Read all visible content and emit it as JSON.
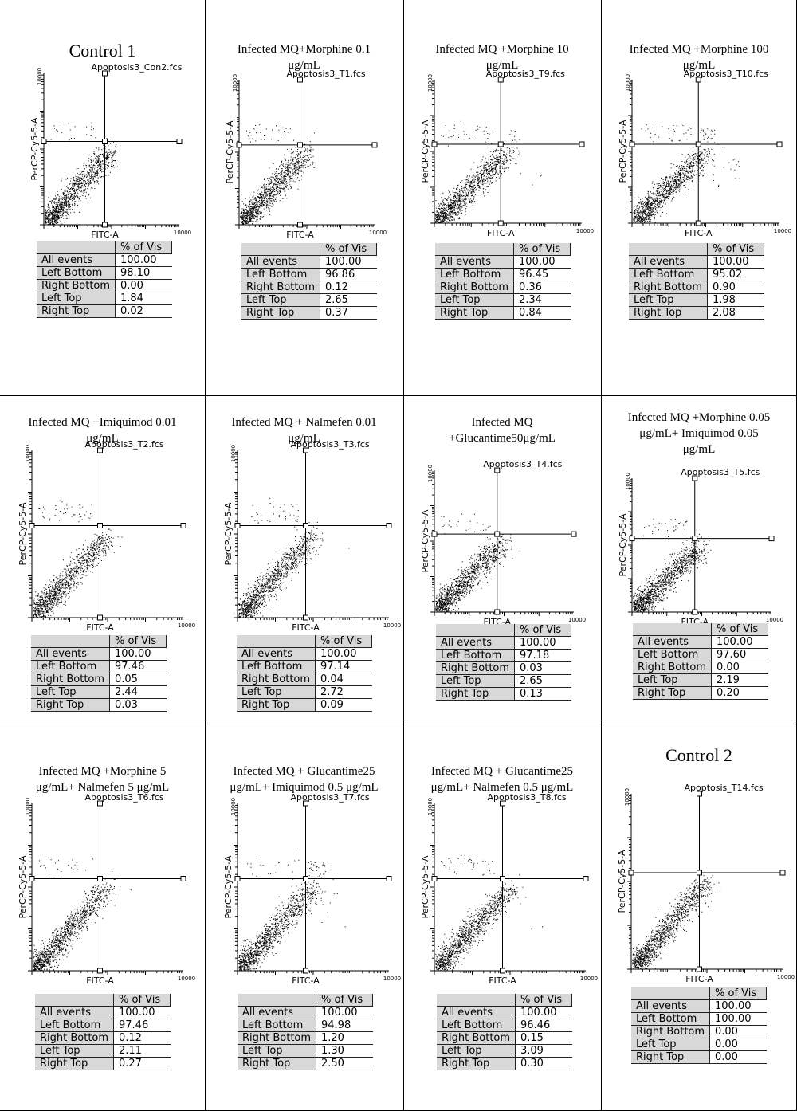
{
  "chart_data": [
    {
      "type": "scatter",
      "title_lines": [
        "Control 1"
      ],
      "file": "Apoptosis3_Con2.fcs",
      "xlabel": "FITC-A",
      "ylabel": "PerCP-Cy5-5-A",
      "stats_header": "% of Vis",
      "stats": [
        {
          "label": "All events",
          "value": "100.00"
        },
        {
          "label": "Left Bottom",
          "value": "98.10"
        },
        {
          "label": "Right Bottom",
          "value": "0.00"
        },
        {
          "label": "Left Top",
          "value": "1.84"
        },
        {
          "label": "Right Top",
          "value": "0.02"
        }
      ]
    },
    {
      "type": "scatter",
      "title_lines": [
        "Infected MQ+Morphine 0.1",
        "μg/mL"
      ],
      "file": "Apoptosis3_T1.fcs",
      "xlabel": "FITC-A",
      "ylabel": "PerCP-Cy5-5-A",
      "stats_header": "% of Vis",
      "stats": [
        {
          "label": "All events",
          "value": "100.00"
        },
        {
          "label": "Left Bottom",
          "value": "96.86"
        },
        {
          "label": "Right Bottom",
          "value": "0.12"
        },
        {
          "label": "Left Top",
          "value": "2.65"
        },
        {
          "label": "Right Top",
          "value": "0.37"
        }
      ]
    },
    {
      "type": "scatter",
      "title_lines": [
        "Infected MQ +Morphine 10",
        "μg/mL"
      ],
      "file": "Apoptosis3_T9.fcs",
      "xlabel": "FITC-A",
      "ylabel": "PerCP-Cy5-5-A",
      "stats_header": "% of Vis",
      "stats": [
        {
          "label": "All events",
          "value": "100.00"
        },
        {
          "label": "Left Bottom",
          "value": "96.45"
        },
        {
          "label": "Right Bottom",
          "value": "0.36"
        },
        {
          "label": "Left Top",
          "value": "2.34"
        },
        {
          "label": "Right Top",
          "value": "0.84"
        }
      ]
    },
    {
      "type": "scatter",
      "title_lines": [
        "Infected MQ +Morphine 100",
        "μg/mL"
      ],
      "file": "Apoptosis3_T10.fcs",
      "xlabel": "FITC-A",
      "ylabel": "PerCP-Cy5-5-A",
      "stats_header": "% of Vis",
      "stats": [
        {
          "label": "All events",
          "value": "100.00"
        },
        {
          "label": "Left Bottom",
          "value": "95.02"
        },
        {
          "label": "Right Bottom",
          "value": "0.90"
        },
        {
          "label": "Left Top",
          "value": "1.98"
        },
        {
          "label": "Right Top",
          "value": "2.08"
        }
      ]
    },
    {
      "type": "scatter",
      "title_lines": [
        "Infected MQ +Imiquimod 0.01",
        "μg/mL"
      ],
      "file": "Apoptosis3_T2.fcs",
      "xlabel": "FITC-A",
      "ylabel": "PerCP-Cy5-5-A",
      "stats_header": "% of Vis",
      "stats": [
        {
          "label": "All events",
          "value": "100.00"
        },
        {
          "label": "Left Bottom",
          "value": "97.46"
        },
        {
          "label": "Right Bottom",
          "value": "0.05"
        },
        {
          "label": "Left Top",
          "value": "2.44"
        },
        {
          "label": "Right Top",
          "value": "0.03"
        }
      ]
    },
    {
      "type": "scatter",
      "title_lines": [
        "Infected MQ + Nalmefen  0.01",
        "μg/mL"
      ],
      "file": "Apoptosis3_T3.fcs",
      "xlabel": "FITC-A",
      "ylabel": "PerCP-Cy5-5-A",
      "stats_header": "% of Vis",
      "stats": [
        {
          "label": "All events",
          "value": "100.00"
        },
        {
          "label": "Left Bottom",
          "value": "97.14"
        },
        {
          "label": "Right Bottom",
          "value": "0.04"
        },
        {
          "label": "Left Top",
          "value": "2.72"
        },
        {
          "label": "Right Top",
          "value": "0.09"
        }
      ]
    },
    {
      "type": "scatter",
      "title_lines": [
        "Infected MQ",
        "+Glucantime50μg/mL"
      ],
      "file": "Apoptosis3_T4.fcs",
      "xlabel": "FITC-A",
      "ylabel": "PerCP-Cy5-5-A",
      "stats_header": "% of Vis",
      "stats": [
        {
          "label": "All events",
          "value": "100.00"
        },
        {
          "label": "Left Bottom",
          "value": "97.18"
        },
        {
          "label": "Right Bottom",
          "value": "0.03"
        },
        {
          "label": "Left Top",
          "value": "2.65"
        },
        {
          "label": "Right Top",
          "value": "0.13"
        }
      ]
    },
    {
      "type": "scatter",
      "title_lines": [
        "Infected MQ +Morphine 0.05",
        "μg/mL+ Imiquimod 0.05",
        "μg/mL"
      ],
      "file": "Apoptosis3_T5.fcs",
      "xlabel": "FITC-A",
      "ylabel": "PerCP-Cy5-5-A",
      "stats_header": "% of Vis",
      "stats": [
        {
          "label": "All events",
          "value": "100.00"
        },
        {
          "label": "Left Bottom",
          "value": "97.60"
        },
        {
          "label": "Right Bottom",
          "value": "0.00"
        },
        {
          "label": "Left Top",
          "value": "2.19"
        },
        {
          "label": "Right Top",
          "value": "0.20"
        }
      ]
    },
    {
      "type": "scatter",
      "title_lines": [
        "Infected MQ +Morphine 5",
        "μg/mL+  Nalmefen  5 μg/mL"
      ],
      "file": "Apoptosis3_T6.fcs",
      "xlabel": "FITC-A",
      "ylabel": "PerCP-Cy5-5-A",
      "stats_header": "% of Vis",
      "stats": [
        {
          "label": "All events",
          "value": "100.00"
        },
        {
          "label": "Left Bottom",
          "value": "97.46"
        },
        {
          "label": "Right Bottom",
          "value": "0.12"
        },
        {
          "label": "Left Top",
          "value": "2.11"
        },
        {
          "label": "Right Top",
          "value": "0.27"
        }
      ]
    },
    {
      "type": "scatter",
      "title_lines": [
        "Infected MQ + Glucantime25",
        "μg/mL+ Imiquimod 0.5 μg/mL"
      ],
      "file": "Apoptosis3_T7.fcs",
      "xlabel": "FITC-A",
      "ylabel": "PerCP-Cy5-5-A",
      "stats_header": "% of Vis",
      "stats": [
        {
          "label": "All events",
          "value": "100.00"
        },
        {
          "label": "Left Bottom",
          "value": "94.98"
        },
        {
          "label": "Right Bottom",
          "value": "1.20"
        },
        {
          "label": "Left Top",
          "value": "1.30"
        },
        {
          "label": "Right Top",
          "value": "2.50"
        }
      ]
    },
    {
      "type": "scatter",
      "title_lines": [
        "Infected MQ + Glucantime25",
        "μg/mL+  Nalmefen  0.5 μg/mL"
      ],
      "file": "Apoptosis3_T8.fcs",
      "xlabel": "FITC-A",
      "ylabel": "PerCP-Cy5-5-A",
      "stats_header": "% of Vis",
      "stats": [
        {
          "label": "All events",
          "value": "100.00"
        },
        {
          "label": "Left Bottom",
          "value": "96.46"
        },
        {
          "label": "Right Bottom",
          "value": "0.15"
        },
        {
          "label": "Left Top",
          "value": "3.09"
        },
        {
          "label": "Right Top",
          "value": "0.30"
        }
      ]
    },
    {
      "type": "scatter",
      "title_lines": [
        "Control 2"
      ],
      "file": "Apoptosis_T14.fcs",
      "xlabel": "FITC-A",
      "ylabel": "PerCP-Cy5-5-A",
      "stats_header": "% of Vis",
      "stats": [
        {
          "label": "All events",
          "value": "100.00"
        },
        {
          "label": "Left Bottom",
          "value": "100.00"
        },
        {
          "label": "Right Bottom",
          "value": "0.00"
        },
        {
          "label": "Left Top",
          "value": "0.00"
        },
        {
          "label": "Right Top",
          "value": "0.00"
        }
      ]
    }
  ],
  "axis_max_label": "10000"
}
